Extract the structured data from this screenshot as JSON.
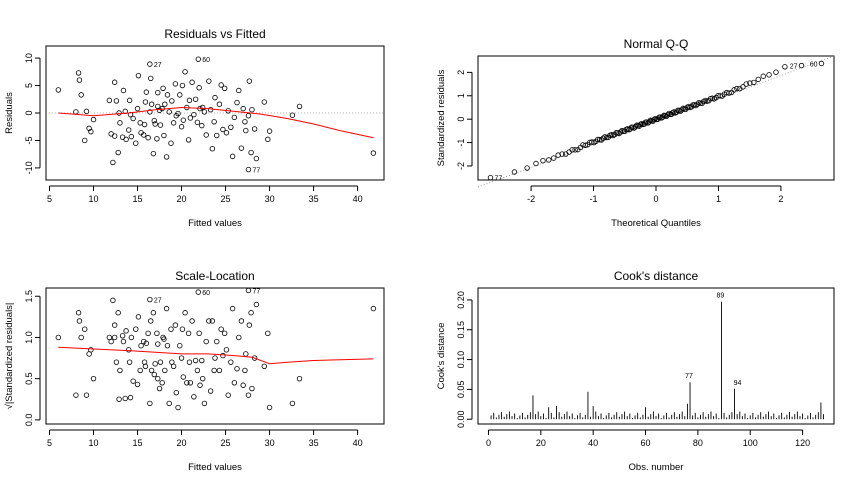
{
  "chart_data": [
    {
      "id": "rvf",
      "type": "scatter",
      "title": "Residuals vs Fitted",
      "xlabel": "Fitted values",
      "ylabel": "Residuals",
      "xlim": [
        4.6,
        43
      ],
      "ylim": [
        -12.2,
        12.2
      ],
      "xticks": [
        5,
        10,
        15,
        20,
        25,
        30,
        35,
        40
      ],
      "yticks": [
        -10,
        -5,
        0,
        5,
        10
      ],
      "reference_line": {
        "y": 0,
        "style": "dotted"
      },
      "smooth_line": {
        "color": "#ff0000",
        "x": [
          6,
          10,
          14,
          17,
          20,
          23,
          26,
          29,
          32,
          35,
          38,
          41.8
        ],
        "y": [
          0,
          -0.5,
          0,
          0.6,
          1.0,
          0.8,
          0.3,
          -0.2,
          -1.0,
          -2.0,
          -3.2,
          -4.5
        ]
      },
      "points": [
        [
          6,
          4.2
        ],
        [
          8,
          0.2
        ],
        [
          8.3,
          7.3
        ],
        [
          8.4,
          6
        ],
        [
          8.6,
          3.3
        ],
        [
          9.0,
          -5.0
        ],
        [
          9.2,
          0.3
        ],
        [
          9.5,
          -2.8
        ],
        [
          9.7,
          -3.4
        ],
        [
          10,
          -1.2
        ],
        [
          11.8,
          2.3
        ],
        [
          12,
          -3.8
        ],
        [
          12.2,
          -9.0
        ],
        [
          12.4,
          -4.2
        ],
        [
          12.4,
          5.6
        ],
        [
          12.6,
          2.2
        ],
        [
          12.8,
          -7.2
        ],
        [
          12.9,
          0
        ],
        [
          13,
          -1.8
        ],
        [
          13.3,
          -4.4
        ],
        [
          13.4,
          4.1
        ],
        [
          13.6,
          0.3
        ],
        [
          13.7,
          -4.8
        ],
        [
          14.0,
          -3.1
        ],
        [
          14.1,
          2.3
        ],
        [
          14.2,
          -0.3
        ],
        [
          14.3,
          -4.3
        ],
        [
          14.5,
          -1.0
        ],
        [
          14.8,
          -5.5
        ],
        [
          15.0,
          0.8
        ],
        [
          15.1,
          6.8
        ],
        [
          15.3,
          -1.8
        ],
        [
          15.4,
          -3.6
        ],
        [
          15.7,
          -4.0
        ],
        [
          15.8,
          -2.1
        ],
        [
          15.9,
          2.0
        ],
        [
          16.0,
          3.8
        ],
        [
          16.2,
          -4.5
        ],
        [
          16.4,
          0.2
        ],
        [
          16.5,
          6.3
        ],
        [
          16.6,
          1.6
        ],
        [
          16.8,
          -7.4
        ],
        [
          16.9,
          -1.4
        ],
        [
          17.0,
          -2.0
        ],
        [
          17.2,
          -4.7
        ],
        [
          17.3,
          3.7
        ],
        [
          17.3,
          1.2
        ],
        [
          17.5,
          0.5
        ],
        [
          17.6,
          -2.2
        ],
        [
          17.8,
          0.8
        ],
        [
          17.9,
          4.5
        ],
        [
          18.0,
          -4.1
        ],
        [
          18.1,
          1.6
        ],
        [
          18.3,
          -8.0
        ],
        [
          18.4,
          3.3
        ],
        [
          18.6,
          0.2
        ],
        [
          18.8,
          -5.5
        ],
        [
          18.9,
          2.2
        ],
        [
          19.1,
          -1.8
        ],
        [
          19.3,
          5.3
        ],
        [
          19.4,
          -0.5
        ],
        [
          19.6,
          -0.1
        ],
        [
          19.8,
          3.3
        ],
        [
          20.0,
          -2.5
        ],
        [
          20.1,
          5.0
        ],
        [
          20.2,
          -1.3
        ],
        [
          20.4,
          7.5
        ],
        [
          20.6,
          1.0
        ],
        [
          20.8,
          -4.9
        ],
        [
          20.9,
          2.3
        ],
        [
          21.0,
          -0.9
        ],
        [
          21.2,
          5.6
        ],
        [
          21.4,
          -0.3
        ],
        [
          21.6,
          2.5
        ],
        [
          21.8,
          -1.7
        ],
        [
          22.0,
          4.6
        ],
        [
          22.1,
          0.8
        ],
        [
          22.3,
          -2.3
        ],
        [
          22.4,
          1.0
        ],
        [
          22.6,
          0.2
        ],
        [
          22.8,
          -4.0
        ],
        [
          23.1,
          5.8
        ],
        [
          23.3,
          0.6
        ],
        [
          23.5,
          -6.5
        ],
        [
          23.7,
          -1.6
        ],
        [
          23.8,
          2.8
        ],
        [
          24.0,
          -4.1
        ],
        [
          24.3,
          1.6
        ],
        [
          24.5,
          5.1
        ],
        [
          24.7,
          -3.0
        ],
        [
          24.9,
          4.5
        ],
        [
          25.1,
          -3.6
        ],
        [
          25.3,
          0.4
        ],
        [
          25.6,
          -2.6
        ],
        [
          25.8,
          -7.9
        ],
        [
          26.0,
          -0.8
        ],
        [
          26.3,
          1.9
        ],
        [
          26.5,
          4.1
        ],
        [
          26.8,
          -6.4
        ],
        [
          27.0,
          0.8
        ],
        [
          27.2,
          -1.6
        ],
        [
          27.3,
          -3.2
        ],
        [
          27.6,
          -0.5
        ],
        [
          27.7,
          5.8
        ],
        [
          27.9,
          -7.2
        ],
        [
          28.0,
          0.6
        ],
        [
          28.3,
          -2.9
        ],
        [
          28.5,
          -8.3
        ],
        [
          29.4,
          2.0
        ],
        [
          29.8,
          -4.8
        ],
        [
          30.0,
          -3.3
        ],
        [
          32.6,
          -0.4
        ],
        [
          33.4,
          1.2
        ],
        [
          41.8,
          -7.3
        ]
      ],
      "labeled_points": [
        {
          "x": 16.4,
          "y": 8.9,
          "label": "27"
        },
        {
          "x": 21.9,
          "y": 9.8,
          "label": "60"
        },
        {
          "x": 27.6,
          "y": -10.3,
          "label": "77"
        }
      ]
    },
    {
      "id": "qq",
      "type": "scatter",
      "title": "Normal Q-Q",
      "xlabel": "Theoretical Quantiles",
      "ylabel": "Standardized residuals",
      "xlim": [
        -2.85,
        2.85
      ],
      "ylim": [
        -2.6,
        2.7
      ],
      "xticks": [
        -2,
        -1,
        0,
        1,
        2
      ],
      "yticks": [
        -2,
        -1,
        0,
        1,
        2
      ],
      "reference_line": {
        "style": "dotted",
        "x": [
          -2.85,
          2.85
        ],
        "y": [
          -2.9,
          2.7
        ]
      },
      "n_points": 128,
      "labeled_points": [
        {
          "x": -2.65,
          "y": -2.5,
          "label": "77"
        },
        {
          "x": 2.33,
          "y": 2.29,
          "label": "27"
        },
        {
          "x": 2.65,
          "y": 2.38,
          "label": "60"
        }
      ]
    },
    {
      "id": "sl",
      "type": "scatter",
      "title": "Scale-Location",
      "xlabel": "Fitted values",
      "ylabel": "√|Standardized residuals|",
      "xlim": [
        4.6,
        43
      ],
      "ylim": [
        -0.05,
        1.6
      ],
      "xticks": [
        5,
        10,
        15,
        20,
        25,
        30,
        35,
        40
      ],
      "yticks": [
        0.0,
        0.5,
        1.0,
        1.5
      ],
      "smooth_line": {
        "color": "#ff0000",
        "x": [
          6,
          10,
          14,
          17,
          20,
          23,
          26,
          28,
          30,
          32,
          35,
          38,
          41.8
        ],
        "y": [
          0.88,
          0.86,
          0.84,
          0.82,
          0.8,
          0.8,
          0.78,
          0.76,
          0.68,
          0.7,
          0.72,
          0.73,
          0.74
        ]
      },
      "points": [
        [
          6,
          1.0
        ],
        [
          8,
          0.3
        ],
        [
          8.3,
          1.3
        ],
        [
          8.4,
          1.2
        ],
        [
          8.6,
          1.0
        ],
        [
          9.0,
          1.1
        ],
        [
          9.2,
          0.3
        ],
        [
          9.5,
          0.8
        ],
        [
          9.7,
          0.85
        ],
        [
          10,
          0.5
        ],
        [
          11.8,
          1.0
        ],
        [
          12,
          0.95
        ],
        [
          12.2,
          1.45
        ],
        [
          12.4,
          1.0
        ],
        [
          12.4,
          1.15
        ],
        [
          12.6,
          0.7
        ],
        [
          12.8,
          1.3
        ],
        [
          12.9,
          0.25
        ],
        [
          13,
          0.6
        ],
        [
          13.3,
          1.02
        ],
        [
          13.4,
          0.95
        ],
        [
          13.6,
          0.26
        ],
        [
          13.7,
          1.08
        ],
        [
          14.0,
          0.85
        ],
        [
          14.1,
          0.7
        ],
        [
          14.2,
          0.27
        ],
        [
          14.3,
          1.0
        ],
        [
          14.5,
          0.47
        ],
        [
          14.8,
          1.1
        ],
        [
          15.0,
          0.43
        ],
        [
          15.1,
          1.25
        ],
        [
          15.3,
          0.6
        ],
        [
          15.4,
          0.9
        ],
        [
          15.7,
          0.95
        ],
        [
          15.8,
          0.7
        ],
        [
          15.9,
          0.65
        ],
        [
          16.0,
          0.93
        ],
        [
          16.2,
          1.05
        ],
        [
          16.4,
          0.2
        ],
        [
          16.5,
          1.2
        ],
        [
          16.6,
          0.6
        ],
        [
          16.8,
          1.3
        ],
        [
          16.9,
          0.55
        ],
        [
          17.0,
          0.68
        ],
        [
          17.2,
          1.05
        ],
        [
          17.3,
          0.92
        ],
        [
          17.3,
          0.5
        ],
        [
          17.5,
          0.38
        ],
        [
          17.6,
          0.7
        ],
        [
          17.8,
          0.45
        ],
        [
          17.9,
          1.0
        ],
        [
          18.0,
          0.98
        ],
        [
          18.1,
          0.6
        ],
        [
          18.3,
          1.35
        ],
        [
          18.4,
          0.9
        ],
        [
          18.6,
          0.2
        ],
        [
          18.8,
          1.1
        ],
        [
          18.9,
          0.7
        ],
        [
          19.1,
          0.65
        ],
        [
          19.3,
          1.15
        ],
        [
          19.4,
          0.33
        ],
        [
          19.6,
          0.15
        ],
        [
          19.8,
          0.9
        ],
        [
          20.0,
          0.75
        ],
        [
          20.1,
          1.1
        ],
        [
          20.2,
          0.52
        ],
        [
          20.4,
          1.3
        ],
        [
          20.6,
          0.45
        ],
        [
          20.8,
          1.05
        ],
        [
          20.9,
          0.7
        ],
        [
          21.0,
          0.45
        ],
        [
          21.2,
          1.2
        ],
        [
          21.4,
          0.28
        ],
        [
          21.6,
          0.72
        ],
        [
          21.8,
          0.6
        ],
        [
          22.0,
          1.05
        ],
        [
          22.1,
          0.42
        ],
        [
          22.3,
          0.72
        ],
        [
          22.4,
          0.5
        ],
        [
          22.6,
          0.2
        ],
        [
          22.8,
          0.95
        ],
        [
          23.1,
          1.2
        ],
        [
          23.3,
          0.35
        ],
        [
          23.5,
          1.2
        ],
        [
          23.7,
          0.6
        ],
        [
          23.8,
          0.75
        ],
        [
          24.0,
          0.95
        ],
        [
          24.3,
          0.6
        ],
        [
          24.5,
          1.1
        ],
        [
          24.7,
          0.78
        ],
        [
          24.9,
          1.05
        ],
        [
          25.1,
          0.85
        ],
        [
          25.3,
          0.3
        ],
        [
          25.6,
          0.7
        ],
        [
          25.8,
          1.35
        ],
        [
          26.0,
          0.45
        ],
        [
          26.3,
          0.62
        ],
        [
          26.5,
          1.0
        ],
        [
          26.8,
          1.2
        ],
        [
          27.0,
          0.42
        ],
        [
          27.2,
          0.6
        ],
        [
          27.3,
          0.8
        ],
        [
          27.6,
          0.3
        ],
        [
          27.7,
          1.15
        ],
        [
          27.9,
          1.3
        ],
        [
          28.0,
          0.38
        ],
        [
          28.3,
          0.75
        ],
        [
          28.5,
          1.4
        ],
        [
          29.4,
          0.65
        ],
        [
          29.8,
          1.05
        ],
        [
          30.0,
          0.15
        ],
        [
          32.6,
          0.2
        ],
        [
          33.4,
          0.5
        ],
        [
          41.8,
          1.35
        ]
      ],
      "labeled_points": [
        {
          "x": 16.4,
          "y": 1.46,
          "label": "27"
        },
        {
          "x": 21.9,
          "y": 1.55,
          "label": "60"
        },
        {
          "x": 27.6,
          "y": 1.57,
          "label": "77"
        }
      ]
    },
    {
      "id": "cook",
      "type": "bar",
      "title": "Cook's distance",
      "xlabel": "Obs. number",
      "ylabel": "Cook's distance",
      "xlim": [
        -4,
        132
      ],
      "ylim": [
        -0.008,
        0.22
      ],
      "xticks": [
        0,
        20,
        40,
        60,
        80,
        100,
        120
      ],
      "yticks": [
        0.0,
        0.05,
        0.1,
        0.15,
        0.2
      ],
      "n_obs": 128,
      "highlighted": [
        {
          "obs": 77,
          "value": 0.062,
          "label": "77"
        },
        {
          "obs": 89,
          "value": 0.197,
          "label": "89"
        },
        {
          "obs": 94,
          "value": 0.051,
          "label": "94"
        }
      ],
      "notable": [
        [
          17,
          0.04
        ],
        [
          38,
          0.046
        ],
        [
          40,
          0.022
        ],
        [
          76,
          0.026
        ],
        [
          127,
          0.028
        ],
        [
          60,
          0.02
        ],
        [
          23,
          0.02
        ],
        [
          26,
          0.022
        ]
      ]
    }
  ]
}
